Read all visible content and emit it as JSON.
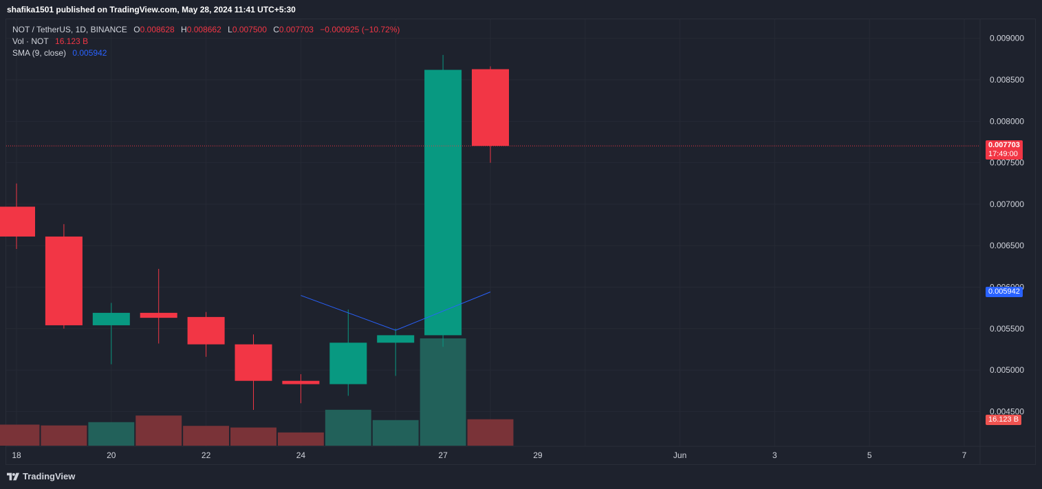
{
  "header": {
    "published_text": "shafika1501 published on TradingView.com, May 28, 2024 11:41 UTC+5:30"
  },
  "legend": {
    "symbol": "NOT / TetherUS, 1D, BINANCE",
    "o_label": "O",
    "o_value": "0.008628",
    "h_label": "H",
    "h_value": "0.008662",
    "l_label": "L",
    "l_value": "0.007500",
    "c_label": "C",
    "c_value": "0.007703",
    "change": "−0.000925 (−10.72%)",
    "vol_label": "Vol · NOT",
    "vol_value": "16.123 B",
    "sma_label": "SMA (9, close)",
    "sma_value": "0.005942"
  },
  "badges": {
    "last_price": "0.007703",
    "countdown": "17:49:00",
    "sma": "0.005942",
    "volume": "16.123 B"
  },
  "footer": {
    "brand": "TradingView"
  },
  "colors": {
    "up": "#089981",
    "down": "#f23645",
    "sma": "#2962ff",
    "vol_up": "#22615a",
    "vol_down": "#7a3338"
  },
  "chart_data": {
    "type": "candlestick",
    "y_ticks": [
      "0.009000",
      "0.008500",
      "0.008000",
      "0.007500",
      "0.007000",
      "0.006500",
      "0.006000",
      "0.005500",
      "0.005000",
      "0.004500"
    ],
    "x_ticks": [
      {
        "label": "18",
        "day": 0
      },
      {
        "label": "20",
        "day": 2
      },
      {
        "label": "22",
        "day": 4
      },
      {
        "label": "24",
        "day": 6
      },
      {
        "label": "27",
        "day": 9
      },
      {
        "label": "29",
        "day": 11
      },
      {
        "label": "Jun",
        "day": 14
      },
      {
        "label": "3",
        "day": 16
      },
      {
        "label": "5",
        "day": 18
      },
      {
        "label": "7",
        "day": 20
      }
    ],
    "ylim": [
      0.00408,
      0.00923
    ],
    "candles": [
      {
        "day": 0,
        "o": 0.00697,
        "h": 0.00725,
        "l": 0.00646,
        "c": 0.00661
      },
      {
        "day": 1,
        "o": 0.00661,
        "h": 0.00676,
        "l": 0.0055,
        "c": 0.00554
      },
      {
        "day": 2,
        "o": 0.00554,
        "h": 0.00581,
        "l": 0.00507,
        "c": 0.00569
      },
      {
        "day": 3,
        "o": 0.00569,
        "h": 0.00622,
        "l": 0.00532,
        "c": 0.00563
      },
      {
        "day": 4,
        "o": 0.00564,
        "h": 0.0057,
        "l": 0.00516,
        "c": 0.00531
      },
      {
        "day": 5,
        "o": 0.00531,
        "h": 0.00543,
        "l": 0.00452,
        "c": 0.00487
      },
      {
        "day": 6,
        "o": 0.00487,
        "h": 0.00495,
        "l": 0.0046,
        "c": 0.00483
      },
      {
        "day": 7,
        "o": 0.00483,
        "h": 0.00573,
        "l": 0.00469,
        "c": 0.00533
      },
      {
        "day": 8,
        "o": 0.00533,
        "h": 0.0055,
        "l": 0.00493,
        "c": 0.00542
      },
      {
        "day": 9,
        "o": 0.00542,
        "h": 0.0088,
        "l": 0.00528,
        "c": 0.00862
      },
      {
        "day": 10,
        "o": 0.008628,
        "h": 0.008662,
        "l": 0.0075,
        "c": 0.007703
      }
    ],
    "volume": [
      {
        "day": 0,
        "dir": "down",
        "value": 0.51
      },
      {
        "day": 1,
        "dir": "down",
        "value": 0.49
      },
      {
        "day": 2,
        "dir": "up",
        "value": 0.57
      },
      {
        "day": 3,
        "dir": "down",
        "value": 0.73
      },
      {
        "day": 4,
        "dir": "down",
        "value": 0.48
      },
      {
        "day": 5,
        "dir": "down",
        "value": 0.44
      },
      {
        "day": 6,
        "dir": "down",
        "value": 0.32
      },
      {
        "day": 7,
        "dir": "up",
        "value": 0.87
      },
      {
        "day": 8,
        "dir": "up",
        "value": 0.62
      },
      {
        "day": 9,
        "dir": "up",
        "value": 2.6
      },
      {
        "day": 10,
        "dir": "down",
        "value": 0.64
      }
    ],
    "sma": [
      {
        "day": 6,
        "v": 0.0059
      },
      {
        "day": 8,
        "v": 0.00548
      },
      {
        "day": 10,
        "v": 0.005942
      }
    ],
    "last_price": 0.007703
  }
}
